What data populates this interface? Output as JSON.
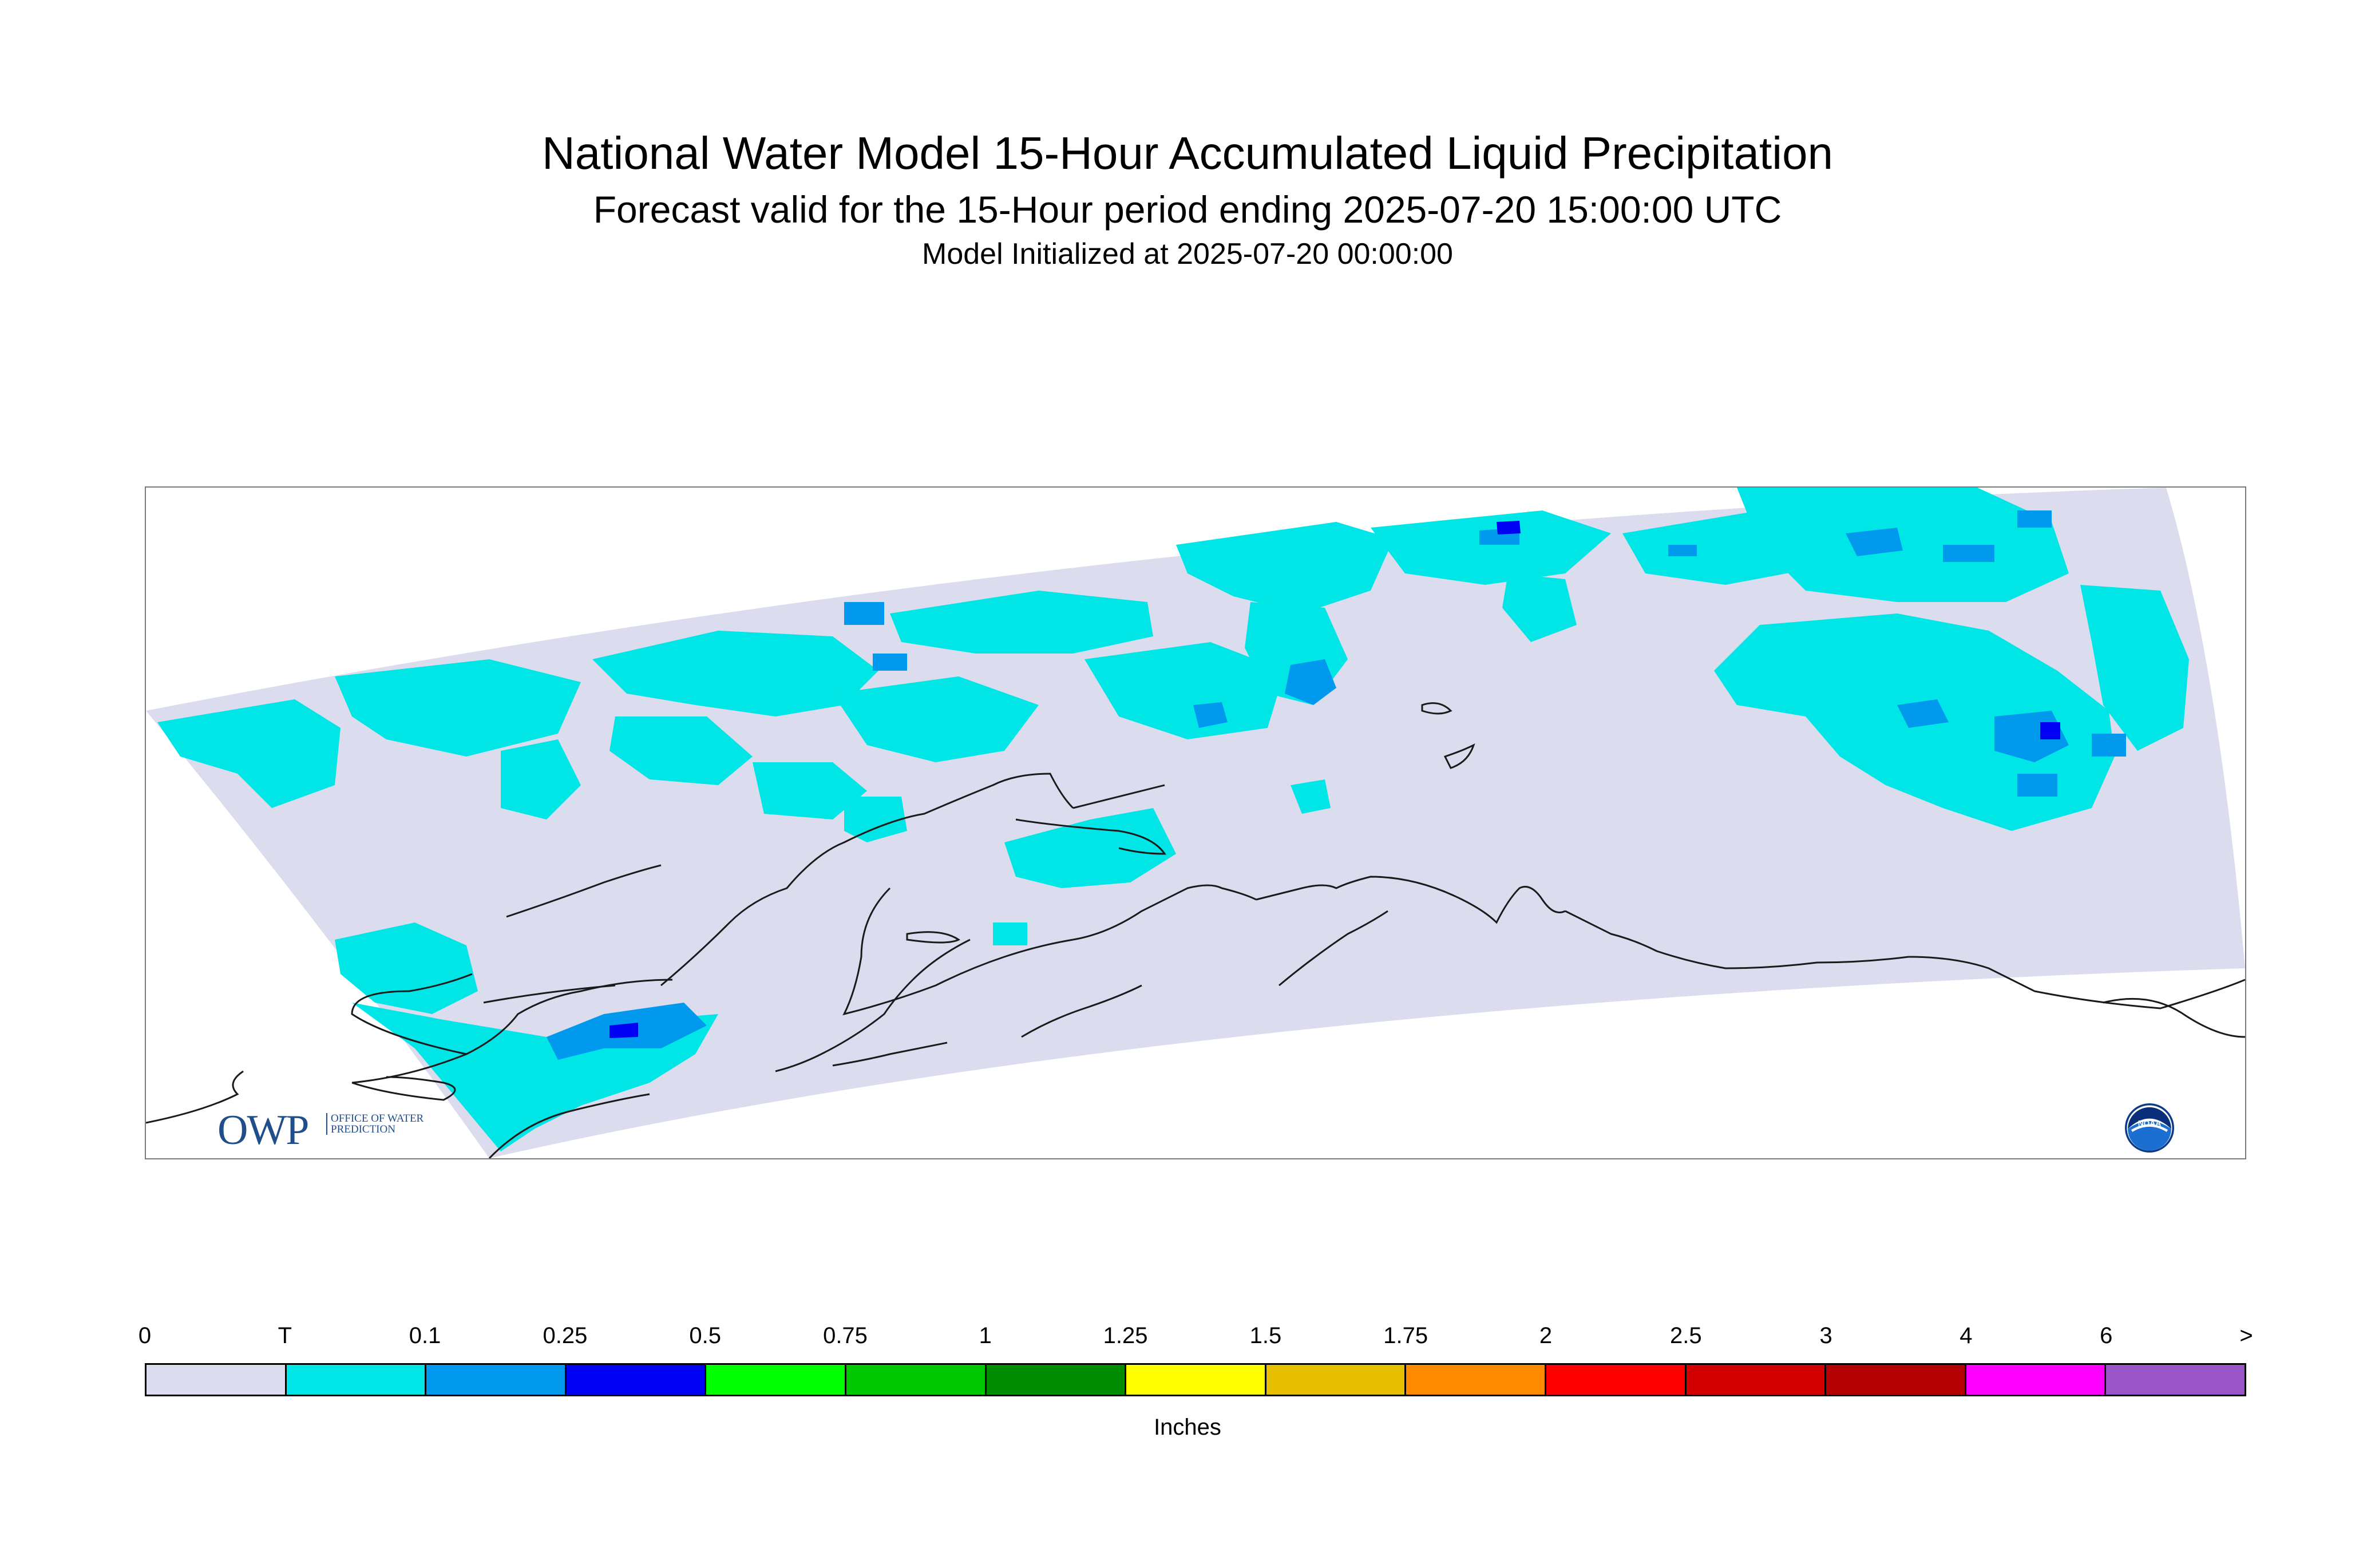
{
  "title": {
    "main": "National Water Model 15-Hour Accumulated Liquid Precipitation",
    "sub": "Forecast valid for the 15-Hour period ending 2025-07-20 15:00:00 UTC",
    "init": "Model Initialized at 2025-07-20 00:00:00"
  },
  "map": {
    "domain_fill_color": "#dcdcef",
    "coastline_color": "#1a1a1a"
  },
  "logos": {
    "owp": {
      "letters": "OWP",
      "words": "OFFICE OF WATER PREDICTION",
      "color": "#1f4e8a"
    },
    "noaa": {
      "text": "NOAA",
      "color": "#1a6fd1"
    }
  },
  "legend": {
    "units": "Inches",
    "labels": [
      "0",
      "T",
      "0.1",
      "0.25",
      "0.5",
      "0.75",
      "1",
      "1.25",
      "1.5",
      "1.75",
      "2",
      "2.5",
      "3",
      "4",
      "6",
      ">"
    ],
    "colors": [
      "#dcdcef",
      "#00e5e5",
      "#0099ee",
      "#0000f2",
      "#00ff00",
      "#00c800",
      "#008c00",
      "#ffff00",
      "#e6be00",
      "#ff8c00",
      "#ff0000",
      "#d20000",
      "#b40000",
      "#ff00ff",
      "#9955c8"
    ]
  }
}
